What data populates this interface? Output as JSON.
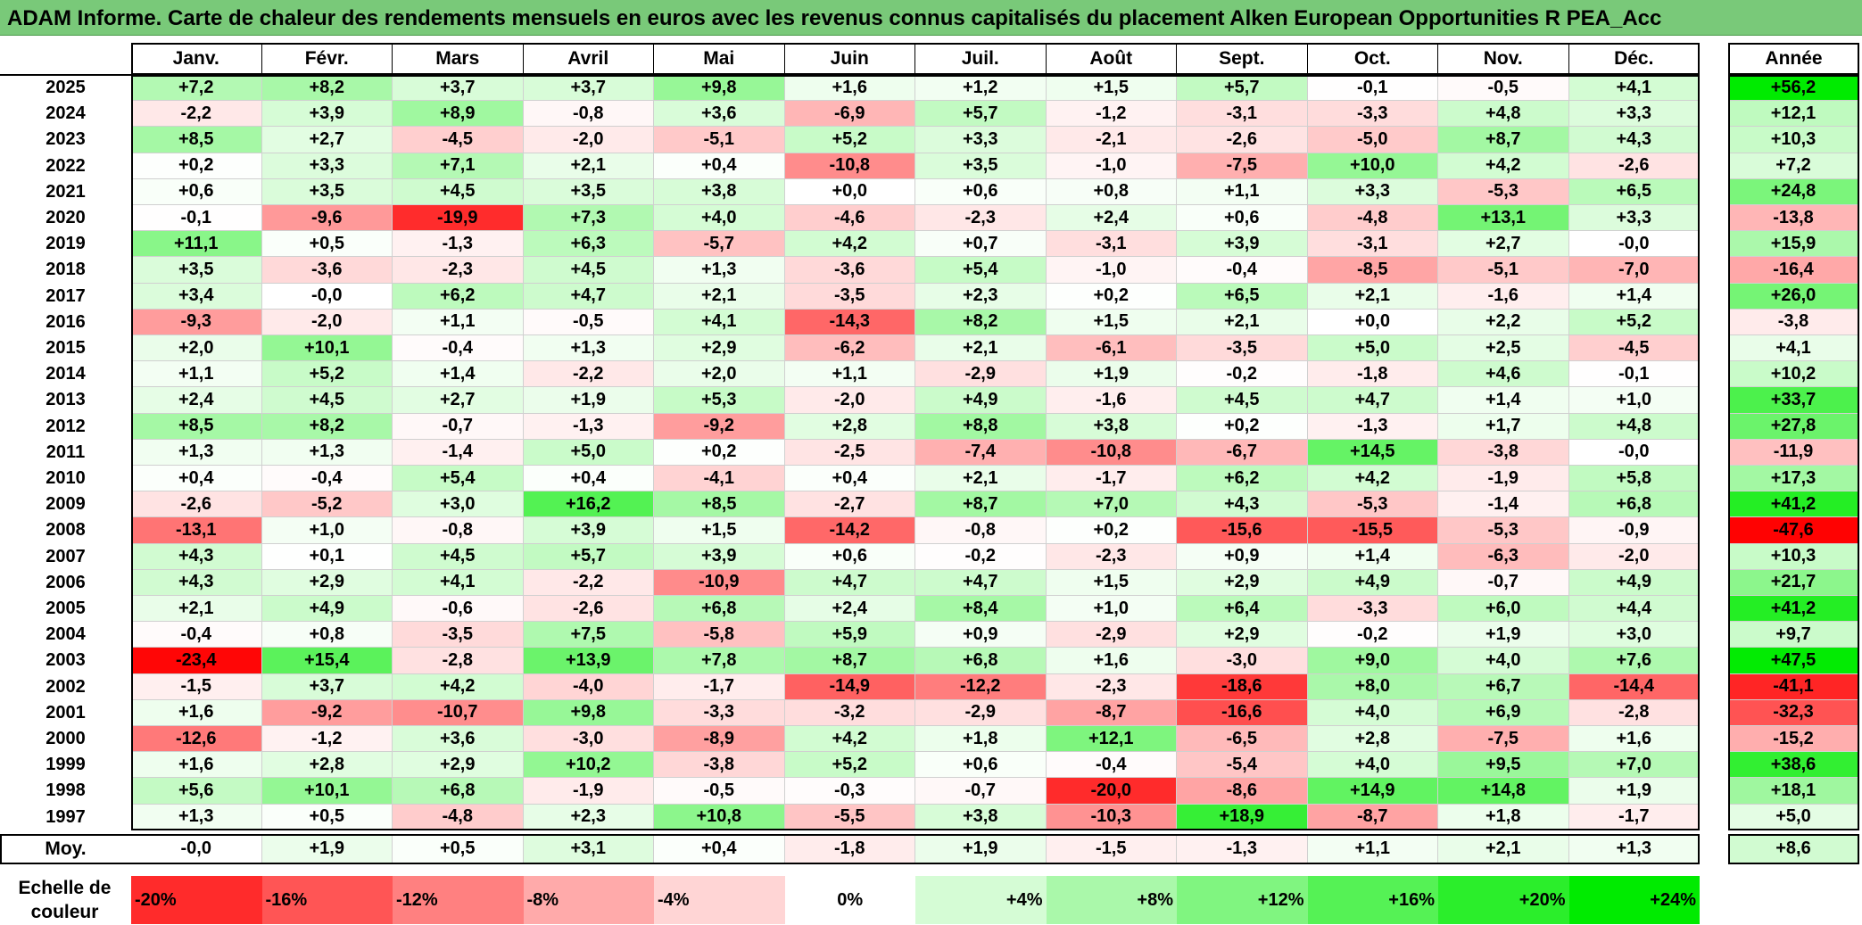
{
  "title": "ADAM Informe. Carte de chaleur des rendements mensuels en euros avec les revenus connus capitalisés du placement Alken European Opportunities R PEA_Acc",
  "chart_data": {
    "type": "heatmap",
    "months": [
      "Janv.",
      "Févr.",
      "Mars",
      "Avril",
      "Mai",
      "Juin",
      "Juil.",
      "Août",
      "Sept.",
      "Oct.",
      "Nov.",
      "Déc."
    ],
    "year_header": "Année",
    "years": [
      "2025",
      "2024",
      "2023",
      "2022",
      "2021",
      "2020",
      "2019",
      "2018",
      "2017",
      "2016",
      "2015",
      "2014",
      "2013",
      "2012",
      "2011",
      "2010",
      "2009",
      "2008",
      "2007",
      "2006",
      "2005",
      "2004",
      "2003",
      "2002",
      "2001",
      "2000",
      "1999",
      "1998",
      "1997"
    ],
    "values": [
      [
        "+7,2",
        "+8,2",
        "+3,7",
        "+3,7",
        "+9,8",
        "+1,6",
        "+1,2",
        "+1,5",
        "+5,7",
        "-0,1",
        "-0,5",
        "+4,1",
        "+56,2"
      ],
      [
        "-2,2",
        "+3,9",
        "+8,9",
        "-0,8",
        "+3,6",
        "-6,9",
        "+5,7",
        "-1,2",
        "-3,1",
        "-3,3",
        "+4,8",
        "+3,3",
        "+12,1"
      ],
      [
        "+8,5",
        "+2,7",
        "-4,5",
        "-2,0",
        "-5,1",
        "+5,2",
        "+3,3",
        "-2,1",
        "-2,6",
        "-5,0",
        "+8,7",
        "+4,3",
        "+10,3"
      ],
      [
        "+0,2",
        "+3,3",
        "+7,1",
        "+2,1",
        "+0,4",
        "-10,8",
        "+3,5",
        "-1,0",
        "-7,5",
        "+10,0",
        "+4,2",
        "-2,6",
        "+7,2"
      ],
      [
        "+0,6",
        "+3,5",
        "+4,5",
        "+3,5",
        "+3,8",
        "+0,0",
        "+0,6",
        "+0,8",
        "+1,1",
        "+3,3",
        "-5,3",
        "+6,5",
        "+24,8"
      ],
      [
        "-0,1",
        "-9,6",
        "-19,9",
        "+7,3",
        "+4,0",
        "-4,6",
        "-2,3",
        "+2,4",
        "+0,6",
        "-4,8",
        "+13,1",
        "+3,3",
        "-13,8"
      ],
      [
        "+11,1",
        "+0,5",
        "-1,3",
        "+6,3",
        "-5,7",
        "+4,2",
        "+0,7",
        "-3,1",
        "+3,9",
        "-3,1",
        "+2,7",
        "-0,0",
        "+15,9"
      ],
      [
        "+3,5",
        "-3,6",
        "-2,3",
        "+4,5",
        "+1,3",
        "-3,6",
        "+5,4",
        "-1,0",
        "-0,4",
        "-8,5",
        "-5,1",
        "-7,0",
        "-16,4"
      ],
      [
        "+3,4",
        "-0,0",
        "+6,2",
        "+4,7",
        "+2,1",
        "-3,5",
        "+2,3",
        "+0,2",
        "+6,5",
        "+2,1",
        "-1,6",
        "+1,4",
        "+26,0"
      ],
      [
        "-9,3",
        "-2,0",
        "+1,1",
        "-0,5",
        "+4,1",
        "-14,3",
        "+8,2",
        "+1,5",
        "+2,1",
        "+0,0",
        "+2,2",
        "+5,2",
        "-3,8"
      ],
      [
        "+2,0",
        "+10,1",
        "-0,4",
        "+1,3",
        "+2,9",
        "-6,2",
        "+2,1",
        "-6,1",
        "-3,5",
        "+5,0",
        "+2,5",
        "-4,5",
        "+4,1"
      ],
      [
        "+1,1",
        "+5,2",
        "+1,4",
        "-2,2",
        "+2,0",
        "+1,1",
        "-2,9",
        "+1,9",
        "-0,2",
        "-1,8",
        "+4,6",
        "-0,1",
        "+10,2"
      ],
      [
        "+2,4",
        "+4,5",
        "+2,7",
        "+1,9",
        "+5,3",
        "-2,0",
        "+4,9",
        "-1,6",
        "+4,5",
        "+4,7",
        "+1,4",
        "+1,0",
        "+33,7"
      ],
      [
        "+8,5",
        "+8,2",
        "-0,7",
        "-1,3",
        "-9,2",
        "+2,8",
        "+8,8",
        "+3,8",
        "+0,2",
        "-1,3",
        "+1,7",
        "+4,8",
        "+27,8"
      ],
      [
        "+1,3",
        "+1,3",
        "-1,4",
        "+5,0",
        "+0,2",
        "-2,5",
        "-7,4",
        "-10,8",
        "-6,7",
        "+14,5",
        "-3,8",
        "-0,0",
        "-11,9"
      ],
      [
        "+0,4",
        "-0,4",
        "+5,4",
        "+0,4",
        "-4,1",
        "+0,4",
        "+2,1",
        "-1,7",
        "+6,2",
        "+4,2",
        "-1,9",
        "+5,8",
        "+17,3"
      ],
      [
        "-2,6",
        "-5,2",
        "+3,0",
        "+16,2",
        "+8,5",
        "-2,7",
        "+8,7",
        "+7,0",
        "+4,3",
        "-5,3",
        "-1,4",
        "+6,8",
        "+41,2"
      ],
      [
        "-13,1",
        "+1,0",
        "-0,8",
        "+3,9",
        "+1,5",
        "-14,2",
        "-0,8",
        "+0,2",
        "-15,6",
        "-15,5",
        "-5,3",
        "-0,9",
        "-47,6"
      ],
      [
        "+4,3",
        "+0,1",
        "+4,5",
        "+5,7",
        "+3,9",
        "+0,6",
        "-0,2",
        "-2,3",
        "+0,9",
        "+1,4",
        "-6,3",
        "-2,0",
        "+10,3"
      ],
      [
        "+4,3",
        "+2,9",
        "+4,1",
        "-2,2",
        "-10,9",
        "+4,7",
        "+4,7",
        "+1,5",
        "+2,9",
        "+4,9",
        "-0,7",
        "+4,9",
        "+21,7"
      ],
      [
        "+2,1",
        "+4,9",
        "-0,6",
        "-2,6",
        "+6,8",
        "+2,4",
        "+8,4",
        "+1,0",
        "+6,4",
        "-3,3",
        "+6,0",
        "+4,4",
        "+41,2"
      ],
      [
        "-0,4",
        "+0,8",
        "-3,5",
        "+7,5",
        "-5,8",
        "+5,9",
        "+0,9",
        "-2,9",
        "+2,9",
        "-0,2",
        "+1,9",
        "+3,0",
        "+9,7"
      ],
      [
        "-23,4",
        "+15,4",
        "-2,8",
        "+13,9",
        "+7,8",
        "+8,7",
        "+6,8",
        "+1,6",
        "-3,0",
        "+9,0",
        "+4,0",
        "+7,6",
        "+47,5"
      ],
      [
        "-1,5",
        "+3,7",
        "+4,2",
        "-4,0",
        "-1,7",
        "-14,9",
        "-12,2",
        "-2,3",
        "-18,6",
        "+8,0",
        "+6,7",
        "-14,4",
        "-41,1"
      ],
      [
        "+1,6",
        "-9,2",
        "-10,7",
        "+9,8",
        "-3,3",
        "-3,2",
        "-2,9",
        "-8,7",
        "-16,6",
        "+4,0",
        "+6,9",
        "-2,8",
        "-32,3"
      ],
      [
        "-12,6",
        "-1,2",
        "+3,6",
        "-3,0",
        "-8,9",
        "+4,2",
        "+1,8",
        "+12,1",
        "-6,5",
        "+2,8",
        "-7,5",
        "+1,6",
        "-15,2"
      ],
      [
        "+1,6",
        "+2,8",
        "+2,9",
        "+10,2",
        "-3,8",
        "+5,2",
        "+0,6",
        "-0,4",
        "-5,4",
        "+4,0",
        "+9,5",
        "+7,0",
        "+38,6"
      ],
      [
        "+5,6",
        "+10,1",
        "+6,8",
        "-1,9",
        "-0,5",
        "-0,3",
        "-0,7",
        "-20,0",
        "-8,6",
        "+14,9",
        "+14,8",
        "+1,9",
        "+18,1"
      ],
      [
        "+1,3",
        "+0,5",
        "-4,8",
        "+2,3",
        "+10,8",
        "-5,5",
        "+3,8",
        "-10,3",
        "+18,9",
        "-8,7",
        "+1,8",
        "-1,7",
        "+5,0"
      ]
    ],
    "average_label": "Moy.",
    "average": [
      "-0,0",
      "+1,9",
      "+0,5",
      "+3,1",
      "+0,4",
      "-1,8",
      "+1,9",
      "-1,5",
      "-1,3",
      "+1,1",
      "+2,1",
      "+1,3",
      "+8,6"
    ],
    "color_scale": {
      "label": "Echelle de couleur",
      "steps": [
        "-20%",
        "-16%",
        "-12%",
        "-8%",
        "-4%",
        "0%",
        "+4%",
        "+8%",
        "+12%",
        "+16%",
        "+20%",
        "+24%"
      ],
      "step_values": [
        -20,
        -16,
        -12,
        -8,
        -4,
        0,
        4,
        8,
        12,
        16,
        20,
        24
      ],
      "negative_color": "#ff0000",
      "neutral_color": "#ffffff",
      "positive_color": "#00ee00"
    }
  }
}
